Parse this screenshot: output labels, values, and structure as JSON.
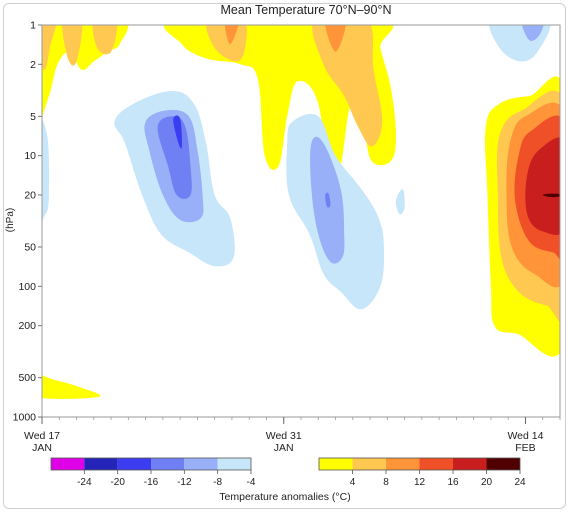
{
  "chart_data": {
    "type": "heatmap",
    "subtype": "filled-contour",
    "title": "Mean Temperature 70°N–90°N",
    "ylabel": "(hPa)",
    "yscale": "log",
    "yaxis_inverted": true,
    "ylim": [
      1,
      1000
    ],
    "yticks": [
      1,
      2,
      5,
      10,
      20,
      50,
      100,
      200,
      500,
      1000
    ],
    "xlim": [
      "2021-01-17",
      "2021-02-16"
    ],
    "xticks": [
      {
        "date": "2021-01-17",
        "label1": "Wed 17",
        "label2": "JAN"
      },
      {
        "date": "2021-01-31",
        "label1": "Wed 31",
        "label2": "JAN"
      },
      {
        "date": "2021-02-14",
        "label1": "Wed 14",
        "label2": "FEB"
      }
    ],
    "colorbar": {
      "label": "Temperature anomalies (°C)",
      "cold": {
        "colors": [
          "#e000e8",
          "#2424b8",
          "#3c3cf0",
          "#6e80f4",
          "#98b0f8",
          "#c8e6fa"
        ],
        "ticks": [
          "-24",
          "-20",
          "-16",
          "-12",
          "-8",
          "-4"
        ]
      },
      "warm": {
        "colors": [
          "#ffff00",
          "#ffc850",
          "#ff9438",
          "#f05028",
          "#c81e1e",
          "#500000"
        ],
        "ticks": [
          "4",
          "8",
          "12",
          "16",
          "20",
          "24"
        ]
      }
    },
    "regions": [
      {
        "name": "warm-top-left",
        "level": 4,
        "points": [
          [
            "2021-01-17.0",
            1
          ],
          [
            "2021-01-17.0",
            5.5
          ],
          [
            "2021-01-17.4",
            3.5
          ],
          [
            "2021-01-17.9",
            2.0
          ],
          [
            "2021-01-18.6",
            1.6
          ],
          [
            "2021-01-19.3",
            2.2
          ],
          [
            "2021-01-20.0",
            1.9
          ],
          [
            "2021-01-20.8",
            1.6
          ],
          [
            "2021-01-21.5",
            1.4
          ],
          [
            "2021-01-21.6",
            1
          ]
        ]
      },
      {
        "name": "warm-top-left-8a",
        "level": 8,
        "points": [
          [
            "2021-01-17.0",
            1
          ],
          [
            "2021-01-17.1",
            2.2
          ],
          [
            "2021-01-17.5",
            1.4
          ],
          [
            "2021-01-17.8",
            1
          ]
        ]
      },
      {
        "name": "warm-top-left-8b",
        "level": 8,
        "points": [
          [
            "2021-01-18.2",
            1
          ],
          [
            "2021-01-18.5",
            1.8
          ],
          [
            "2021-01-19.0",
            1.9
          ],
          [
            "2021-01-19.3",
            1
          ]
        ]
      },
      {
        "name": "warm-top-left-8c",
        "level": 8,
        "points": [
          [
            "2021-01-20.0",
            1
          ],
          [
            "2021-01-20.2",
            1.5
          ],
          [
            "2021-01-21.0",
            1.6
          ],
          [
            "2021-01-21.3",
            1
          ]
        ]
      },
      {
        "name": "warm-top-mid",
        "level": 4,
        "points": [
          [
            "2021-01-25.0",
            1
          ],
          [
            "2021-01-25.1",
            1.4
          ],
          [
            "2021-01-26.5",
            1.8
          ],
          [
            "2021-01-28.5",
            2.0
          ],
          [
            "2021-01-29.5",
            2.6
          ],
          [
            "2021-01-29.9",
            10.0
          ],
          [
            "2021-01-30.7",
            12.0
          ],
          [
            "2021-01-31.2",
            5.0
          ],
          [
            "2021-01-31.8",
            2.7
          ],
          [
            "2021-02-02.0",
            4.0
          ],
          [
            "2021-02-02.7",
            20.0
          ],
          [
            "2021-02-03.3",
            12.0
          ],
          [
            "2021-02-03.9",
            4.0
          ],
          [
            "2021-02-04.6",
            6.0
          ],
          [
            "2021-02-05.1",
            11.0
          ],
          [
            "2021-02-06.2",
            11.0
          ],
          [
            "2021-02-06.5",
            7.0
          ],
          [
            "2021-02-06.2",
            3.0
          ],
          [
            "2021-02-05.6",
            1.5
          ],
          [
            "2021-02-05.4",
            1
          ]
        ]
      },
      {
        "name": "warm-top-mid-8a",
        "level": 8,
        "points": [
          [
            "2021-01-26.6",
            1
          ],
          [
            "2021-01-27.0",
            1.5
          ],
          [
            "2021-01-28.3",
            1.9
          ],
          [
            "2021-01-28.8",
            1.4
          ],
          [
            "2021-01-28.6",
            1
          ]
        ]
      },
      {
        "name": "warm-top-mid-8b",
        "level": 8,
        "points": [
          [
            "2021-02-01.8",
            1
          ],
          [
            "2021-02-02.3",
            2.0
          ],
          [
            "2021-02-03.5",
            3.5
          ],
          [
            "2021-02-04.3",
            6.0
          ],
          [
            "2021-02-05.1",
            8.5
          ],
          [
            "2021-02-05.7",
            5.5
          ],
          [
            "2021-02-05.2",
            2.2
          ],
          [
            "2021-02-04.8",
            1
          ]
        ]
      },
      {
        "name": "warm-top-mid-12a",
        "level": 12,
        "points": [
          [
            "2021-01-27.6",
            1
          ],
          [
            "2021-01-27.9",
            1.4
          ],
          [
            "2021-01-28.4",
            1
          ]
        ]
      },
      {
        "name": "warm-top-mid-12b",
        "level": 12,
        "points": [
          [
            "2021-02-02.4",
            1
          ],
          [
            "2021-02-03.0",
            1.6
          ],
          [
            "2021-02-03.6",
            1
          ]
        ]
      },
      {
        "name": "warm-right",
        "level": 4,
        "points": [
          [
            "2021-02-16.0",
            3.5
          ],
          [
            "2021-02-14.2",
            3.5
          ],
          [
            "2021-02-12.5",
            4.0
          ],
          [
            "2021-02-11.7",
            6.0
          ],
          [
            "2021-02-11.8",
            20.0
          ],
          [
            "2021-02-12.0",
            100.0
          ],
          [
            "2021-02-12.2",
            200.0
          ],
          [
            "2021-02-13.5",
            230.0
          ],
          [
            "2021-02-16.0",
            250.0
          ]
        ]
      },
      {
        "name": "warm-right-8",
        "level": 8,
        "points": [
          [
            "2021-02-16.0",
            4.2
          ],
          [
            "2021-02-13.8",
            4.5
          ],
          [
            "2021-02-12.5",
            7.0
          ],
          [
            "2021-02-12.4",
            20.0
          ],
          [
            "2021-02-12.6",
            60.0
          ],
          [
            "2021-02-13.6",
            110.0
          ],
          [
            "2021-02-15.2",
            140.0
          ],
          [
            "2021-02-16.0",
            140.0
          ]
        ]
      },
      {
        "name": "warm-right-12",
        "level": 12,
        "points": [
          [
            "2021-02-16.0",
            5.0
          ],
          [
            "2021-02-14.0",
            5.0
          ],
          [
            "2021-02-13.1",
            8.0
          ],
          [
            "2021-02-12.9",
            20.0
          ],
          [
            "2021-02-13.2",
            50.0
          ],
          [
            "2021-02-14.5",
            80.0
          ],
          [
            "2021-02-16.0",
            80.0
          ]
        ]
      },
      {
        "name": "warm-right-16",
        "level": 16,
        "points": [
          [
            "2021-02-16.0",
            5.8
          ],
          [
            "2021-02-14.3",
            6.5
          ],
          [
            "2021-02-13.6",
            10.0
          ],
          [
            "2021-02-13.4",
            22.0
          ],
          [
            "2021-02-14.2",
            45.0
          ],
          [
            "2021-02-15.6",
            55.0
          ],
          [
            "2021-02-16.0",
            55.0
          ]
        ]
      },
      {
        "name": "warm-right-20",
        "level": 20,
        "points": [
          [
            "2021-02-16.0",
            8.0
          ],
          [
            "2021-02-14.8",
            9.0
          ],
          [
            "2021-02-14.1",
            14.0
          ],
          [
            "2021-02-14.1",
            28.0
          ],
          [
            "2021-02-15.0",
            38.0
          ],
          [
            "2021-02-16.0",
            34.0
          ]
        ]
      },
      {
        "name": "warm-right-24",
        "level": 24,
        "points": [
          [
            "2021-02-15.0",
            20.0
          ],
          [
            "2021-02-15.6",
            19.5
          ],
          [
            "2021-02-16.0",
            20.0
          ],
          [
            "2021-02-15.6",
            20.8
          ]
        ]
      },
      {
        "name": "warm-bottom-left",
        "level": 4,
        "points": [
          [
            "2021-01-17.0",
            480
          ],
          [
            "2021-01-17.7",
            520
          ],
          [
            "2021-01-19.0",
            580
          ],
          [
            "2021-01-20.3",
            700
          ],
          [
            "2021-01-17.0",
            700
          ]
        ]
      },
      {
        "name": "cold-left-edge",
        "level": -4,
        "points": [
          [
            "2021-01-17.0",
            5.5
          ],
          [
            "2021-01-17.3",
            7.0
          ],
          [
            "2021-01-17.4",
            20.0
          ],
          [
            "2021-01-17.2",
            28.0
          ],
          [
            "2021-01-17.0",
            30.0
          ]
        ]
      },
      {
        "name": "cold-left-4",
        "level": -4,
        "points": [
          [
            "2021-01-21.2",
            5.5
          ],
          [
            "2021-01-22.3",
            4.0
          ],
          [
            "2021-01-24.5",
            3.2
          ],
          [
            "2021-01-25.8",
            4.0
          ],
          [
            "2021-01-26.5",
            8.0
          ],
          [
            "2021-01-27.0",
            20.0
          ],
          [
            "2021-01-27.9",
            30.0
          ],
          [
            "2021-01-28.1",
            60.0
          ],
          [
            "2021-01-27.0",
            70.0
          ],
          [
            "2021-01-25.5",
            55.0
          ],
          [
            "2021-01-23.9",
            40.0
          ],
          [
            "2021-01-22.8",
            20.0
          ],
          [
            "2021-01-21.8",
            8.0
          ]
        ]
      },
      {
        "name": "cold-left-8",
        "level": -8,
        "points": [
          [
            "2021-01-23.0",
            5.5
          ],
          [
            "2021-01-24.2",
            4.5
          ],
          [
            "2021-01-25.5",
            5.0
          ],
          [
            "2021-01-26.0",
            9.0
          ],
          [
            "2021-01-26.3",
            20.0
          ],
          [
            "2021-01-26.2",
            30.0
          ],
          [
            "2021-01-25.0",
            31.0
          ],
          [
            "2021-01-24.0",
            20.0
          ],
          [
            "2021-01-23.2",
            9.0
          ]
        ]
      },
      {
        "name": "cold-left-12",
        "level": -12,
        "points": [
          [
            "2021-01-23.7",
            6.0
          ],
          [
            "2021-01-24.6",
            5.0
          ],
          [
            "2021-01-25.3",
            6.0
          ],
          [
            "2021-01-25.6",
            12.0
          ],
          [
            "2021-01-25.6",
            20.0
          ],
          [
            "2021-01-24.8",
            20.0
          ],
          [
            "2021-01-24.3",
            12.0
          ]
        ]
      },
      {
        "name": "cold-left-16",
        "level": -16,
        "points": [
          [
            "2021-01-24.6",
            5.3
          ],
          [
            "2021-01-25.0",
            5.2
          ],
          [
            "2021-01-25.1",
            8.5
          ],
          [
            "2021-01-24.9",
            8.0
          ]
        ]
      },
      {
        "name": "cold-mid-4",
        "level": -4,
        "points": [
          [
            "2021-01-31.5",
            5.5
          ],
          [
            "2021-02-02.0",
            5.0
          ],
          [
            "2021-02-03.0",
            10.0
          ],
          [
            "2021-02-04.5",
            18.0
          ],
          [
            "2021-02-05.5",
            30.0
          ],
          [
            "2021-02-05.8",
            50.0
          ],
          [
            "2021-02-05.6",
            100.0
          ],
          [
            "2021-02-04.5",
            150.0
          ],
          [
            "2021-02-03.3",
            110.0
          ],
          [
            "2021-02-02.3",
            80.0
          ],
          [
            "2021-02-01.5",
            40.0
          ],
          [
            "2021-01-31.3",
            20.0
          ],
          [
            "2021-01-31.2",
            8.0
          ]
        ]
      },
      {
        "name": "cold-mid-4b",
        "level": -4,
        "points": [
          [
            "2021-02-06.5",
            22.0
          ],
          [
            "2021-02-06.9",
            18.0
          ],
          [
            "2021-02-07.0",
            25.0
          ],
          [
            "2021-02-06.7",
            28.0
          ]
        ]
      },
      {
        "name": "cold-mid-8",
        "level": -8,
        "points": [
          [
            "2021-02-01.6",
            8.0
          ],
          [
            "2021-02-02.3",
            8.0
          ],
          [
            "2021-02-03.3",
            18.0
          ],
          [
            "2021-02-03.5",
            40.0
          ],
          [
            "2021-02-03.4",
            60.0
          ],
          [
            "2021-02-02.7",
            65.0
          ],
          [
            "2021-02-02.0",
            40.0
          ],
          [
            "2021-02-01.6",
            18.0
          ]
        ]
      },
      {
        "name": "cold-mid-12",
        "level": -12,
        "points": [
          [
            "2021-02-02.4",
            20.0
          ],
          [
            "2021-02-02.6",
            19.5
          ],
          [
            "2021-02-02.7",
            24.0
          ],
          [
            "2021-02-02.5",
            24.5
          ]
        ]
      },
      {
        "name": "cold-top-right",
        "level": -4,
        "points": [
          [
            "2021-02-12.1",
            1
          ],
          [
            "2021-02-12.5",
            1.5
          ],
          [
            "2021-02-13.7",
            1.9
          ],
          [
            "2021-02-14.7",
            1.6
          ],
          [
            "2021-02-15.3",
            1
          ]
        ]
      },
      {
        "name": "cold-top-right-8",
        "level": -8,
        "points": [
          [
            "2021-02-13.8",
            1
          ],
          [
            "2021-02-14.2",
            1.3
          ],
          [
            "2021-02-14.8",
            1.2
          ],
          [
            "2021-02-15.0",
            1
          ]
        ]
      }
    ]
  }
}
